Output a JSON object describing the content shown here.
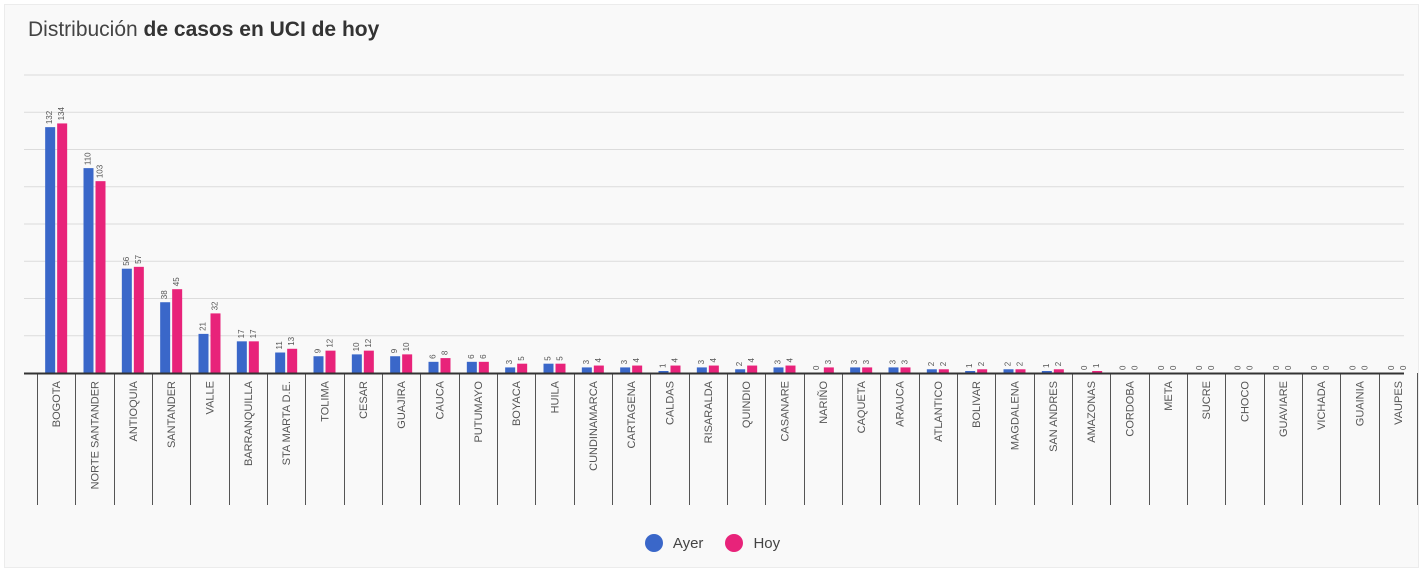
{
  "title_plain": "Distribución ",
  "title_bold": "de casos en UCI de hoy",
  "colors": {
    "ayer": "#3a67c9",
    "hoy": "#e8237a",
    "grid": "#dcdcdc",
    "axis": "#333333"
  },
  "legend": {
    "ayer": "Ayer",
    "hoy": "Hoy"
  },
  "chart_data": {
    "type": "bar",
    "title": "Distribución de casos en UCI de hoy",
    "xlabel": "",
    "ylabel": "",
    "ylim": [
      0,
      160
    ],
    "grid": true,
    "legend_position": "bottom",
    "categories": [
      "BOGOTA",
      "NORTE SANTANDER",
      "ANTIOQUIA",
      "SANTANDER",
      "VALLE",
      "BARRANQUILLA",
      "STA MARTA D.E.",
      "TOLIMA",
      "CESAR",
      "GUAJIRA",
      "CAUCA",
      "PUTUMAYO",
      "BOYACA",
      "HUILA",
      "CUNDINAMARCA",
      "CARTAGENA",
      "CALDAS",
      "RISARALDA",
      "QUINDIO",
      "CASANARE",
      "NARIÑO",
      "CAQUETA",
      "ARAUCA",
      "ATLANTICO",
      "BOLIVAR",
      "MAGDALENA",
      "SAN ANDRES",
      "AMAZONAS",
      "CORDOBA",
      "META",
      "SUCRE",
      "CHOCO",
      "GUAVIARE",
      "VICHADA",
      "GUAINIA",
      "VAUPES"
    ],
    "series": [
      {
        "name": "Ayer",
        "values": [
          132,
          110,
          56,
          38,
          21,
          17,
          11,
          9,
          10,
          9,
          6,
          6,
          3,
          5,
          3,
          3,
          1,
          3,
          2,
          3,
          0,
          3,
          3,
          2,
          1,
          2,
          1,
          0,
          0,
          0,
          0,
          0,
          0,
          0,
          0,
          0
        ]
      },
      {
        "name": "Hoy",
        "values": [
          134,
          103,
          57,
          45,
          32,
          17,
          13,
          12,
          12,
          10,
          8,
          6,
          5,
          5,
          4,
          4,
          4,
          4,
          4,
          4,
          3,
          3,
          3,
          2,
          2,
          2,
          2,
          1,
          0,
          0,
          0,
          0,
          0,
          0,
          0,
          0
        ]
      }
    ]
  }
}
